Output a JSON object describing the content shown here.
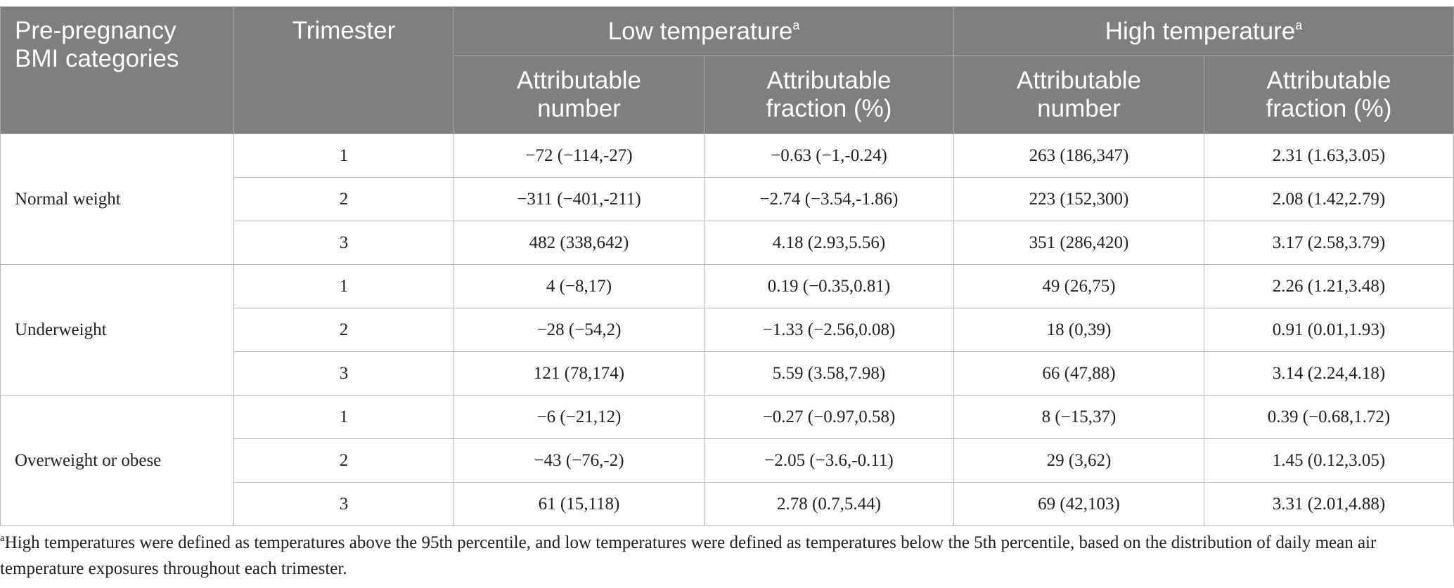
{
  "table": {
    "header": {
      "bmi": "Pre-pregnancy BMI categories",
      "trimester": "Trimester",
      "groups": [
        {
          "label": "Low temperature",
          "marker": "a",
          "columns": [
            "Attributable number",
            "Attributable fraction (%)"
          ]
        },
        {
          "label": "High temperature",
          "marker": "a",
          "columns": [
            "Attributable number",
            "Attributable fraction (%)"
          ]
        }
      ]
    },
    "row_groups": [
      {
        "category": "Normal weight",
        "rows": [
          [
            1,
            "−72 (−114,-27)",
            "−0.63 (−1,-0.24)",
            "263 (186,347)",
            "2.31 (1.63,3.05)"
          ],
          [
            2,
            "−311 (−401,-211)",
            "−2.74 (−3.54,-1.86)",
            "223 (152,300)",
            "2.08 (1.42,2.79)"
          ],
          [
            3,
            "482 (338,642)",
            "4.18 (2.93,5.56)",
            "351 (286,420)",
            "3.17 (2.58,3.79)"
          ]
        ]
      },
      {
        "category": "Underweight",
        "rows": [
          [
            1,
            "4 (−8,17)",
            "0.19 (−0.35,0.81)",
            "49 (26,75)",
            "2.26 (1.21,3.48)"
          ],
          [
            2,
            "−28 (−54,2)",
            "−1.33 (−2.56,0.08)",
            "18 (0,39)",
            "0.91 (0.01,1.93)"
          ],
          [
            3,
            "121 (78,174)",
            "5.59 (3.58,7.98)",
            "66 (47,88)",
            "3.14 (2.24,4.18)"
          ]
        ]
      },
      {
        "category": "Overweight or obese",
        "rows": [
          [
            1,
            "−6 (−21,12)",
            "−0.27 (−0.97,0.58)",
            "8 (−15,37)",
            "0.39 (−0.68,1.72)"
          ],
          [
            2,
            "−43 (−76,-2)",
            "−2.05 (−3.6,-0.11)",
            "29 (3,62)",
            "1.45 (0.12,3.05)"
          ],
          [
            3,
            "61 (15,118)",
            "2.78 (0.7,5.44)",
            "69 (42,103)",
            "3.31 (2.01,4.88)"
          ]
        ]
      }
    ]
  },
  "footnote": {
    "marker": "a",
    "text": "High temperatures were defined as temperatures above the 95th percentile, and low temperatures were defined as temperatures below the 5th percentile, based on the distribution of daily mean air temperature exposures throughout each trimester."
  }
}
